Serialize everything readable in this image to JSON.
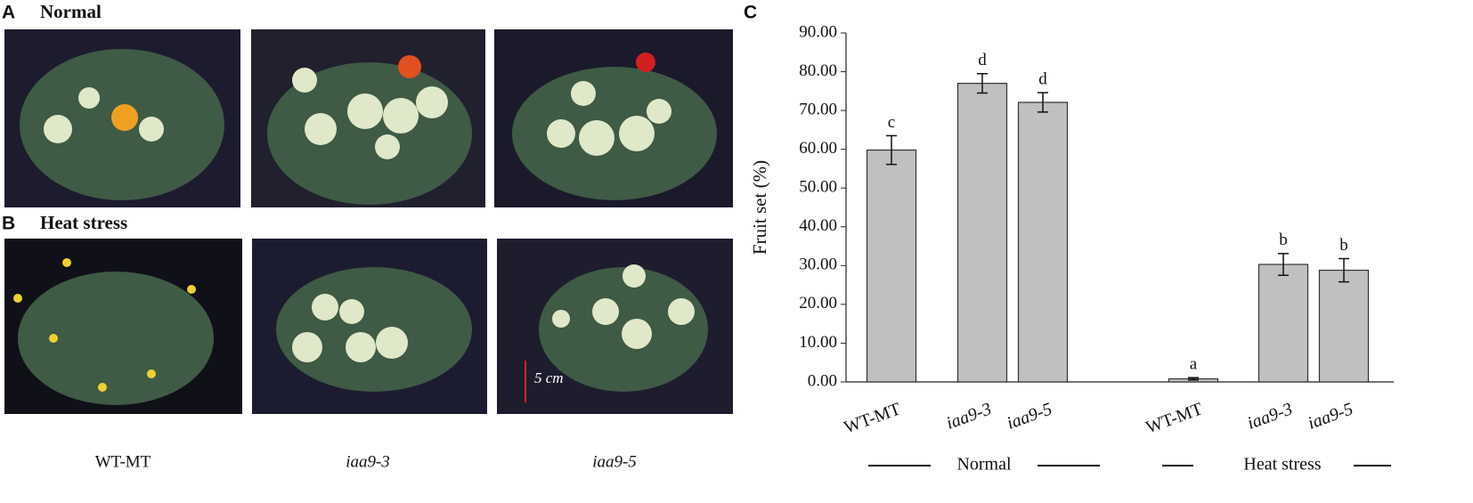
{
  "photo_panels": {
    "A": {
      "label": "A",
      "title": "Normal"
    },
    "B": {
      "label": "B",
      "title": "Heat stress"
    },
    "genotypes": [
      "WT-MT",
      "iaa9-3",
      "iaa9-5"
    ],
    "genotype_italic": [
      false,
      true,
      true
    ],
    "scale_bar": "5 cm"
  },
  "chart_data": {
    "type": "bar",
    "panel_label": "C",
    "y_label": "Fruit set (%)",
    "color": "#c0c0c0",
    "ylim": [
      0,
      90
    ],
    "yticks": [
      {
        "value": 0,
        "label": "0.00"
      },
      {
        "value": 10,
        "label": "10.00"
      },
      {
        "value": 20,
        "label": "20.00"
      },
      {
        "value": 30,
        "label": "30.00"
      },
      {
        "value": 40,
        "label": "40.00"
      },
      {
        "value": 50,
        "label": "50.00"
      },
      {
        "value": 60,
        "label": "60.00"
      },
      {
        "value": 70,
        "label": "70.00"
      },
      {
        "value": 80,
        "label": "80.00"
      },
      {
        "value": 90,
        "label": "90.00"
      }
    ],
    "category_italic": [
      false,
      true,
      true
    ],
    "groups": [
      {
        "name": "Normal",
        "categories": [
          "WT-MT",
          "iaa9-3",
          "iaa9-5"
        ],
        "values": [
          59.8,
          77.0,
          72.1
        ],
        "errors": [
          3.7,
          2.5,
          2.5
        ],
        "letters": [
          "c",
          "d",
          "d"
        ]
      },
      {
        "name": "Heat stress",
        "categories": [
          "WT-MT",
          "iaa9-3",
          "iaa9-5"
        ],
        "values": [
          0.8,
          30.3,
          28.8
        ],
        "errors": [
          0.3,
          2.8,
          3.0
        ],
        "letters": [
          "a",
          "b",
          "b"
        ]
      }
    ]
  }
}
